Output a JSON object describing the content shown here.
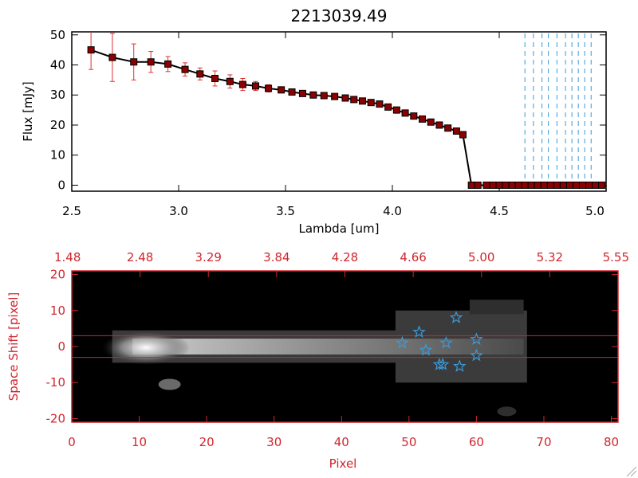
{
  "chart_data": [
    {
      "type": "line",
      "title": "2213039.49",
      "xlabel": "Lambda [um]",
      "ylabel": "Flux [mJy]",
      "xlim": [
        2.5,
        5.0
      ],
      "ylim": [
        -2,
        51
      ],
      "x_ticks": [
        "2.5",
        "3.0",
        "3.5",
        "4.0",
        "4.5",
        "5.0"
      ],
      "y_ticks": [
        "0",
        "10",
        "20",
        "30",
        "40",
        "50"
      ],
      "colors": {
        "line": "#000000",
        "marker": "#8b0000",
        "error_bars": "#e03030",
        "dashed_lines": "#3a9ad9"
      },
      "series": [
        {
          "x": [
            2.59,
            2.69,
            2.79,
            2.87,
            2.95,
            3.03,
            3.1,
            3.17,
            3.24,
            3.3,
            3.36,
            3.42,
            3.48,
            3.53,
            3.58,
            3.63,
            3.68,
            3.73,
            3.78,
            3.82,
            3.86,
            3.9,
            3.94,
            3.98,
            4.02,
            4.06,
            4.1,
            4.14,
            4.18,
            4.22,
            4.26,
            4.3,
            4.33,
            4.37,
            4.4,
            4.44,
            4.47,
            4.5,
            4.53,
            4.56,
            4.59,
            4.62,
            4.65,
            4.68,
            4.71,
            4.74,
            4.77,
            4.8,
            4.83,
            4.86,
            4.89,
            4.92,
            4.95,
            4.98
          ],
          "y": [
            45.0,
            42.5,
            41.0,
            41.0,
            40.3,
            38.5,
            37.0,
            35.5,
            34.5,
            33.5,
            33.0,
            32.2,
            31.7,
            31.0,
            30.5,
            30.0,
            29.8,
            29.5,
            29.0,
            28.5,
            28.0,
            27.5,
            27.0,
            26.0,
            25.0,
            24.0,
            23.0,
            22.0,
            21.0,
            20.0,
            19.0,
            18.0,
            16.8,
            0,
            0,
            0,
            0,
            0,
            0,
            0,
            0,
            0,
            0,
            0,
            0,
            0,
            0,
            0,
            0,
            0,
            0,
            0,
            0,
            0
          ],
          "err": [
            6.5,
            8.0,
            6.0,
            3.5,
            2.5,
            2.2,
            2.0,
            2.5,
            2.2,
            2.0,
            1.5,
            1.2,
            0,
            0,
            0,
            0,
            0,
            0,
            0,
            0,
            0,
            0,
            0,
            0,
            0,
            0,
            0,
            0,
            0,
            0,
            0,
            0,
            0,
            0,
            0,
            0,
            0,
            0,
            0,
            0,
            0,
            0,
            0,
            0,
            0,
            0,
            0,
            0,
            0,
            0,
            0,
            0,
            0,
            0
          ]
        }
      ],
      "dashed_lines_x": [
        4.62,
        4.66,
        4.7,
        4.73,
        4.77,
        4.81,
        4.84,
        4.87,
        4.9,
        4.93
      ]
    },
    {
      "type": "heatmap",
      "xlabel": "Pixel",
      "ylabel": "Space Shift [pixel]",
      "xlim": [
        0,
        81
      ],
      "ylim": [
        -21,
        21
      ],
      "x_ticks": [
        "0",
        "10",
        "20",
        "30",
        "40",
        "50",
        "60",
        "70",
        "80"
      ],
      "y_ticks": [
        "20",
        "10",
        "0",
        "-10",
        "-20"
      ],
      "top_ticks": [
        "1.48",
        "2.48",
        "3.29",
        "3.84",
        "4.28",
        "4.66",
        "5.00",
        "5.32",
        "5.55"
      ],
      "colors": {
        "axes": "#d0262e",
        "stars": "#3a9ad9",
        "background": "#000000"
      },
      "extraction_lines_y": [
        3,
        -3
      ],
      "stars": [
        {
          "x": 49,
          "y": 1
        },
        {
          "x": 51.5,
          "y": 4
        },
        {
          "x": 52.5,
          "y": -1
        },
        {
          "x": 55.5,
          "y": 1
        },
        {
          "x": 57,
          "y": 8
        },
        {
          "x": 60,
          "y": 2
        },
        {
          "x": 60,
          "y": -2.5
        },
        {
          "x": 55,
          "y": -5
        },
        {
          "x": 54.5,
          "y": -5
        },
        {
          "x": 57.5,
          "y": -5.5
        }
      ]
    }
  ]
}
